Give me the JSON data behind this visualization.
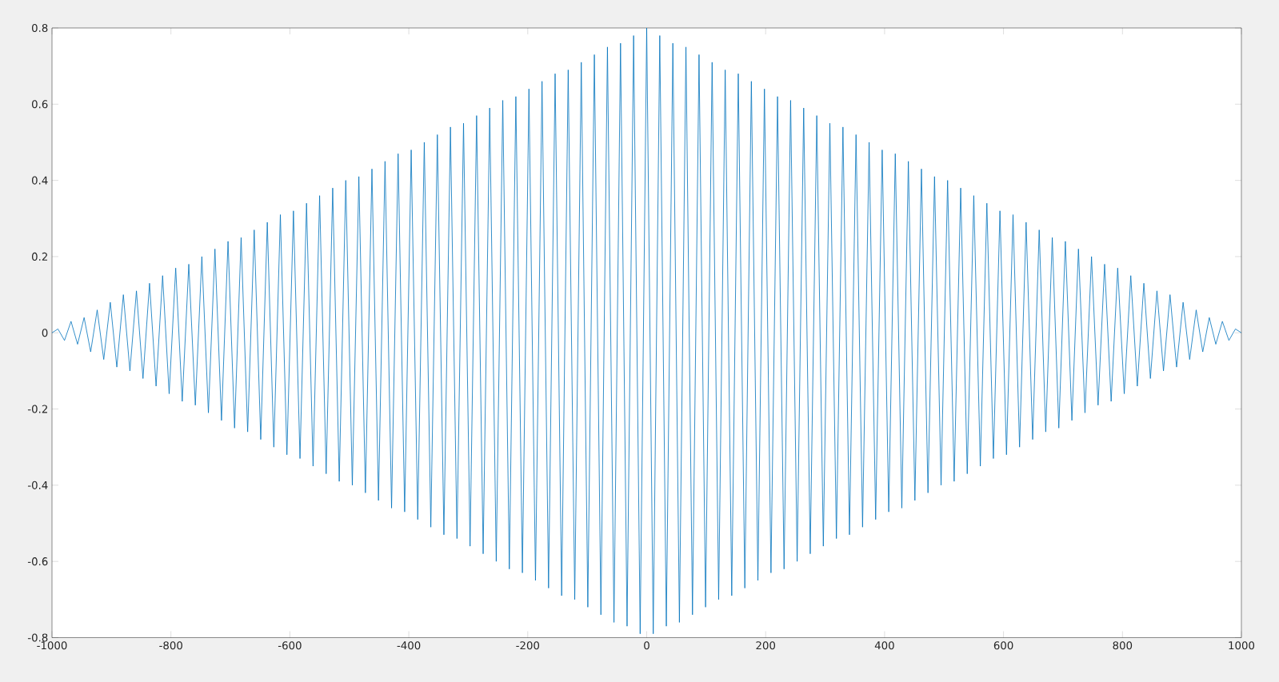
{
  "chart_data": {
    "type": "line",
    "xlim": [
      -1000,
      1000
    ],
    "ylim": [
      -0.8,
      0.8
    ],
    "xticks": [
      -1000,
      -800,
      -600,
      -400,
      -200,
      0,
      200,
      400,
      600,
      800,
      1000
    ],
    "yticks": [
      -0.8,
      -0.6,
      -0.4,
      -0.2,
      0,
      0.2,
      0.4,
      0.6,
      0.8
    ],
    "grid": false,
    "series": [
      {
        "color": "#0072bd",
        "x": [
          -1000,
          -990,
          -979,
          -968,
          -957,
          -946,
          -935,
          -924,
          -913,
          -902,
          -891,
          -880,
          -869,
          -858,
          -847,
          -836,
          -825,
          -814,
          -803,
          -792,
          -781,
          -770,
          -759,
          -748,
          -737,
          -726,
          -715,
          -704,
          -693,
          -682,
          -671,
          -660,
          -649,
          -638,
          -627,
          -616,
          -605,
          -594,
          -583,
          -572,
          -561,
          -550,
          -539,
          -528,
          -517,
          -506,
          -495,
          -484,
          -473,
          -462,
          -451,
          -440,
          -429,
          -418,
          -407,
          -396,
          -385,
          -374,
          -363,
          -352,
          -341,
          -330,
          -319,
          -308,
          -297,
          -286,
          -275,
          -264,
          -253,
          -242,
          -231,
          -220,
          -209,
          -198,
          -187,
          -176,
          -165,
          -154,
          -143,
          -132,
          -121,
          -110,
          -99,
          -88,
          -77,
          -66,
          -55,
          -44,
          -33,
          -22,
          -11,
          0,
          11,
          22,
          33,
          44,
          55,
          66,
          77,
          88,
          99,
          110,
          121,
          132,
          143,
          154,
          165,
          176,
          187,
          198,
          209,
          220,
          231,
          242,
          253,
          264,
          275,
          286,
          297,
          308,
          319,
          330,
          341,
          352,
          363,
          374,
          385,
          396,
          407,
          418,
          429,
          440,
          451,
          462,
          473,
          484,
          495,
          506,
          517,
          528,
          539,
          550,
          561,
          572,
          583,
          594,
          605,
          616,
          627,
          638,
          649,
          660,
          671,
          682,
          693,
          704,
          715,
          726,
          737,
          748,
          759,
          770,
          781,
          792,
          803,
          814,
          825,
          836,
          847,
          858,
          869,
          880,
          891,
          902,
          913,
          924,
          935,
          946,
          957,
          968,
          979,
          990,
          1000
        ],
        "values": [
          0,
          0.01,
          -0.02,
          0.03,
          -0.03,
          0.04,
          -0.05,
          0.06,
          -0.07,
          0.08,
          -0.09,
          0.1,
          -0.1,
          0.11,
          -0.12,
          0.13,
          -0.14,
          0.15,
          -0.16,
          0.17,
          -0.18,
          0.18,
          -0.19,
          0.2,
          -0.21,
          0.22,
          -0.23,
          0.24,
          -0.25,
          0.25,
          -0.26,
          0.27,
          -0.28,
          0.29,
          -0.3,
          0.31,
          -0.32,
          0.32,
          -0.33,
          0.34,
          -0.35,
          0.36,
          -0.37,
          0.38,
          -0.39,
          0.4,
          -0.4,
          0.41,
          -0.42,
          0.43,
          -0.44,
          0.45,
          -0.46,
          0.47,
          -0.47,
          0.48,
          -0.49,
          0.5,
          -0.51,
          0.52,
          -0.53,
          0.54,
          -0.54,
          0.55,
          -0.56,
          0.57,
          -0.58,
          0.59,
          -0.6,
          0.61,
          -0.62,
          0.62,
          -0.63,
          0.64,
          -0.65,
          0.66,
          -0.67,
          0.68,
          -0.69,
          0.69,
          -0.7,
          0.71,
          -0.72,
          0.73,
          -0.74,
          0.75,
          -0.76,
          0.76,
          -0.77,
          0.78,
          -0.79,
          0.8,
          -0.79,
          0.78,
          -0.77,
          0.76,
          -0.76,
          0.75,
          -0.74,
          0.73,
          -0.72,
          0.71,
          -0.7,
          0.69,
          -0.69,
          0.68,
          -0.67,
          0.66,
          -0.65,
          0.64,
          -0.63,
          0.62,
          -0.62,
          0.61,
          -0.6,
          0.59,
          -0.58,
          0.57,
          -0.56,
          0.55,
          -0.54,
          0.54,
          -0.53,
          0.52,
          -0.51,
          0.5,
          -0.49,
          0.48,
          -0.47,
          0.47,
          -0.46,
          0.45,
          -0.44,
          0.43,
          -0.42,
          0.41,
          -0.4,
          0.4,
          -0.39,
          0.38,
          -0.37,
          0.36,
          -0.35,
          0.34,
          -0.33,
          0.32,
          -0.32,
          0.31,
          -0.3,
          0.29,
          -0.28,
          0.27,
          -0.26,
          0.25,
          -0.25,
          0.24,
          -0.23,
          0.22,
          -0.21,
          0.2,
          -0.19,
          0.18,
          -0.18,
          0.17,
          -0.16,
          0.15,
          -0.14,
          0.13,
          -0.12,
          0.11,
          -0.1,
          0.1,
          -0.09,
          0.08,
          -0.07,
          0.06,
          -0.05,
          0.04,
          -0.03,
          0.03,
          -0.02,
          0.01,
          0
        ]
      }
    ]
  }
}
